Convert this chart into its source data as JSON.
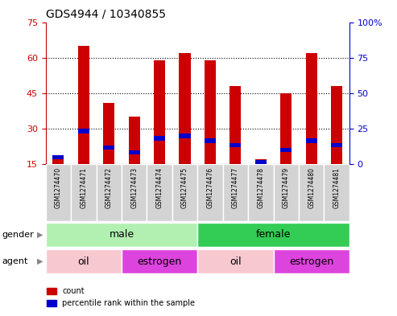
{
  "title": "GDS4944 / 10340855",
  "samples": [
    "GSM1274470",
    "GSM1274471",
    "GSM1274472",
    "GSM1274473",
    "GSM1274474",
    "GSM1274475",
    "GSM1274476",
    "GSM1274477",
    "GSM1274478",
    "GSM1274479",
    "GSM1274480",
    "GSM1274481"
  ],
  "count_values": [
    19,
    65,
    41,
    35,
    59,
    62,
    59,
    48,
    17,
    45,
    62,
    48
  ],
  "percentile_values": [
    18,
    29,
    22,
    20,
    26,
    27,
    25,
    23,
    16,
    21,
    25,
    23
  ],
  "ylim_left": [
    15,
    75
  ],
  "ylim_right": [
    0,
    100
  ],
  "yticks_left": [
    15,
    30,
    45,
    60,
    75
  ],
  "yticks_right": [
    0,
    25,
    50,
    75,
    100
  ],
  "ytick_labels_right": [
    "0",
    "25",
    "50",
    "75",
    "100%"
  ],
  "bar_color": "#cc0000",
  "percentile_color": "#0000cc",
  "bar_width": 0.45,
  "gender_male_color": "#b2f0b2",
  "gender_female_color": "#33cc55",
  "agent_oil_color": "#f8c8d0",
  "agent_estrogen_color": "#dd44dd",
  "tick_color_left": "#cc0000",
  "tick_color_right": "#0000cc",
  "bg_color": "#ffffff",
  "grid_color": "#000000",
  "label_box_color": "#d3d3d3",
  "n_samples": 12,
  "n_male": 6,
  "n_oil1": 3,
  "n_estrogen1": 3,
  "n_oil2": 3,
  "n_estrogen2": 3
}
